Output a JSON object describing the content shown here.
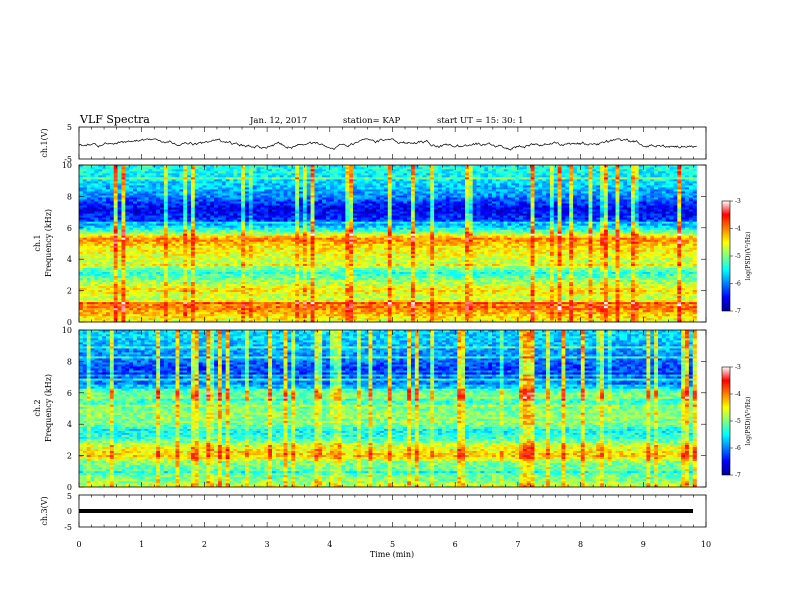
{
  "header": {
    "title": "VLF Spectra",
    "date": "Jan. 12, 2017",
    "station": "station= KAP",
    "start": "start  UT =   15: 30: 1"
  },
  "chart_data": [
    {
      "type": "line",
      "id": "ch1-waveform",
      "ylabel": "ch.1(V)",
      "ylim": [
        -5,
        5
      ],
      "yticks": [
        "5",
        "-5"
      ],
      "xlim": [
        0,
        10
      ],
      "note": "noisy waveform roughly between -2 and +1 V, spans 0 to ~9.85 min"
    },
    {
      "type": "heatmap",
      "id": "ch1-spectrogram",
      "ylabel": "ch.1\nFrequency (kHz)",
      "ylabel_lines": [
        "ch.1",
        "Frequency (kHz)"
      ],
      "ylim": [
        0,
        10
      ],
      "yticks": [
        "0",
        "2",
        "4",
        "6",
        "8",
        "10"
      ],
      "xlim": [
        0,
        9.85
      ],
      "colorbar": {
        "label": "log(PSD)(V²/Hz)",
        "range": [
          -7,
          -3
        ],
        "ticks": [
          "-3",
          "-4",
          "-5",
          "-6",
          "-7"
        ],
        "colors": [
          "#00008f",
          "#0000ff",
          "#0080ff",
          "#00ffff",
          "#80ff80",
          "#ffff00",
          "#ff8000",
          "#ff0000",
          "#ffffff"
        ]
      },
      "bands_khz": [
        [
          0.0,
          -4.6
        ],
        [
          0.6,
          -4.2
        ],
        [
          1.0,
          -3.9
        ],
        [
          1.5,
          -4.8
        ],
        [
          2.0,
          -4.4
        ],
        [
          2.6,
          -4.9
        ],
        [
          3.1,
          -5.4
        ],
        [
          3.6,
          -4.8
        ],
        [
          4.2,
          -4.6
        ],
        [
          4.8,
          -4.4
        ],
        [
          5.3,
          -4.0
        ],
        [
          5.8,
          -5.2
        ],
        [
          6.5,
          -6.3
        ],
        [
          7.2,
          -6.6
        ],
        [
          8.0,
          -6.0
        ],
        [
          9.0,
          -5.6
        ],
        [
          10.0,
          -5.4
        ]
      ]
    },
    {
      "type": "heatmap",
      "id": "ch2-spectrogram",
      "ylabel": "ch.2\nFrequency (kHz)",
      "ylabel_lines": [
        "ch.2",
        "Frequency (kHz)"
      ],
      "ylim": [
        0,
        10
      ],
      "yticks": [
        "0",
        "2",
        "4",
        "6",
        "8",
        "10"
      ],
      "xlim": [
        0,
        9.85
      ],
      "colorbar": {
        "label": "log(PSD)(V²/Hz)",
        "range": [
          -7,
          -3
        ],
        "ticks": [
          "-3",
          "-4",
          "-5",
          "-6",
          "-7"
        ],
        "colors": [
          "#00008f",
          "#0000ff",
          "#0080ff",
          "#00ffff",
          "#80ff80",
          "#ffff00",
          "#ff8000",
          "#ff0000",
          "#ffffff"
        ]
      },
      "bands_khz": [
        [
          0.0,
          -4.6
        ],
        [
          0.5,
          -5.0
        ],
        [
          1.0,
          -5.2
        ],
        [
          1.6,
          -5.0
        ],
        [
          2.0,
          -4.3
        ],
        [
          2.6,
          -4.6
        ],
        [
          3.1,
          -5.3
        ],
        [
          3.6,
          -5.5
        ],
        [
          4.2,
          -4.9
        ],
        [
          4.8,
          -5.0
        ],
        [
          5.5,
          -5.3
        ],
        [
          6.0,
          -5.0
        ],
        [
          6.6,
          -5.9
        ],
        [
          7.2,
          -6.4
        ],
        [
          8.0,
          -6.1
        ],
        [
          9.0,
          -5.8
        ],
        [
          10.0,
          -5.6
        ]
      ]
    },
    {
      "type": "line",
      "id": "ch3-waveform",
      "ylabel": "ch.3(V)",
      "ylim": [
        -5,
        5
      ],
      "yticks": [
        "5",
        "0",
        "-5"
      ],
      "xlim": [
        0,
        10
      ],
      "xlabel": "Time (min)",
      "xticks": [
        "0",
        "1",
        "2",
        "3",
        "4",
        "5",
        "6",
        "7",
        "8",
        "9",
        "10"
      ],
      "level": 0
    }
  ]
}
